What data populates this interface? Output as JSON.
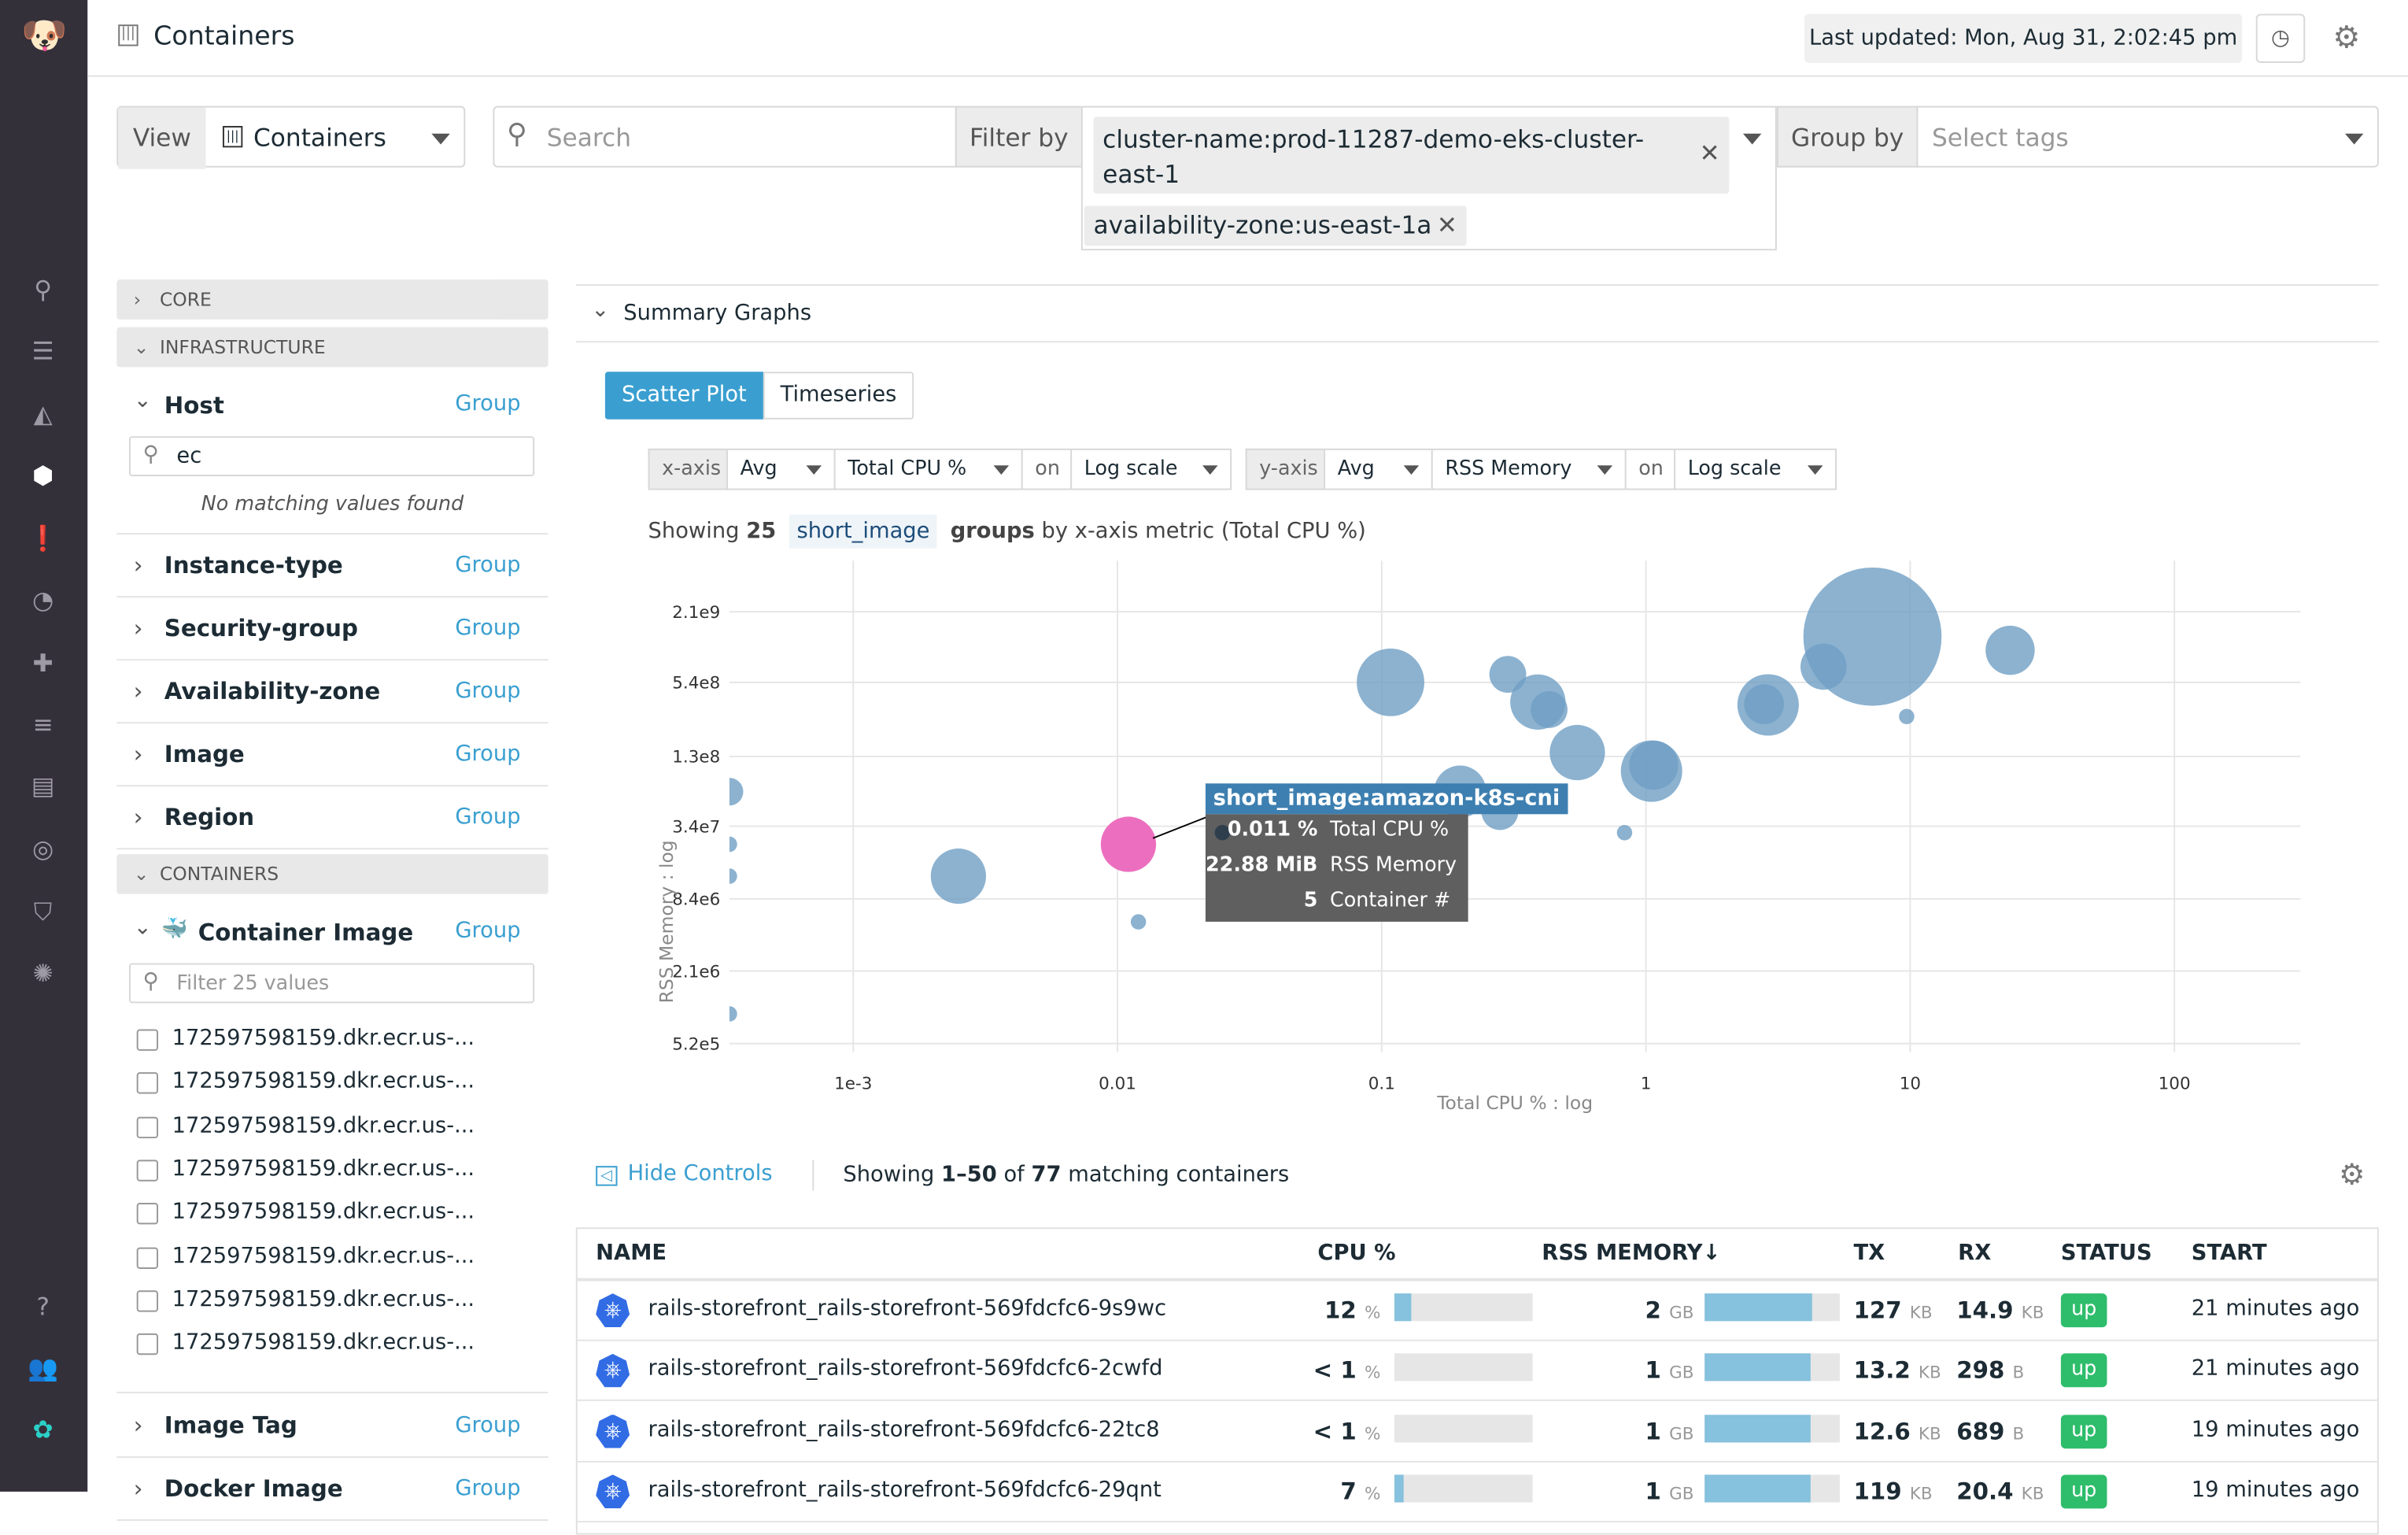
{
  "header": {
    "title": "Containers",
    "last_updated": "Last updated: Mon, Aug 31, 2:02:45 pm"
  },
  "toolbar": {
    "view_label": "View",
    "view_value": "Containers",
    "search_placeholder": "Search",
    "filter_label": "Filter by",
    "filters": [
      "cluster-name:prod-11287-demo-eks-cluster-east-1",
      "availability-zone:us-east-1a"
    ],
    "group_label": "Group by",
    "group_placeholder": "Select tags"
  },
  "sidebar": {
    "sections": {
      "core": "CORE",
      "infrastructure": "INFRASTRUCTURE",
      "containers": "CONTAINERS"
    },
    "group_link": "Group",
    "host": {
      "label": "Host",
      "search_value": "ec",
      "empty": "No matching values found"
    },
    "facets": [
      "Instance-type",
      "Security-group",
      "Availability-zone",
      "Image",
      "Region"
    ],
    "container_image": {
      "label": "Container Image",
      "placeholder": "Filter 25 values",
      "values": [
        "172597598159.dkr.ecr.us-...",
        "172597598159.dkr.ecr.us-...",
        "172597598159.dkr.ecr.us-...",
        "172597598159.dkr.ecr.us-...",
        "172597598159.dkr.ecr.us-...",
        "172597598159.dkr.ecr.us-...",
        "172597598159.dkr.ecr.us-...",
        "172597598159.dkr.ecr.us-..."
      ]
    },
    "more_facets": [
      "Image Tag",
      "Docker Image"
    ]
  },
  "summary": {
    "title": "Summary Graphs",
    "tabs": [
      "Scatter Plot",
      "Timeseries"
    ],
    "active_tab": "Scatter Plot",
    "x_controls": {
      "label": "x-axis",
      "agg": "Avg",
      "metric": "Total CPU %",
      "on": "on",
      "scale": "Log scale"
    },
    "y_controls": {
      "label": "y-axis",
      "agg": "Avg",
      "metric": "RSS Memory",
      "on": "on",
      "scale": "Log scale"
    },
    "showing_prefix": "Showing",
    "showing_count": "25",
    "showing_tag": "short_image",
    "showing_groups": "groups",
    "showing_suffix": "by x-axis metric (Total CPU %)"
  },
  "chart_data": {
    "type": "scatter",
    "xlabel": "Total CPU % : log",
    "ylabel": "RSS Memory : log",
    "xscale": "log",
    "yscale": "log",
    "xlim": [
      0.00034,
      300
    ],
    "ylim": [
      440000,
      5600000000
    ],
    "grid": true,
    "xticks": [
      "1e-3",
      "0.01",
      "0.1",
      "1",
      "10",
      "100"
    ],
    "xtick_values": [
      0.001,
      0.01,
      0.1,
      1,
      10,
      100
    ],
    "yticks": [
      "2.1e9",
      "5.4e8",
      "1.3e8",
      "3.4e7",
      "8.4e6",
      "2.1e6",
      "5.2e5"
    ],
    "ytick_values": [
      2100000000,
      540000000,
      130000000,
      34000000,
      8400000,
      2100000,
      520000
    ],
    "colors": {
      "point": "#6f9fc4",
      "highlight": "#ec6fbf",
      "tooltip_title": "#3d7fb0",
      "tooltip_bg": "#5f5f5f"
    },
    "points": [
      {
        "x": 7.2,
        "y": 1300000000,
        "size": 45
      },
      {
        "x": 23.9,
        "y": 1000000000,
        "size": 16
      },
      {
        "x": 4.7,
        "y": 730000000,
        "size": 15
      },
      {
        "x": 0.108,
        "y": 540000000,
        "size": 22
      },
      {
        "x": 0.3,
        "y": 630000000,
        "size": 12
      },
      {
        "x": 0.39,
        "y": 370000000,
        "size": 18
      },
      {
        "x": 0.43,
        "y": 320000000,
        "size": 12
      },
      {
        "x": 2.9,
        "y": 350000000,
        "size": 20
      },
      {
        "x": 2.8,
        "y": 355000000,
        "size": 13
      },
      {
        "x": 9.7,
        "y": 280000000,
        "size": 5
      },
      {
        "x": 0.55,
        "y": 140000000,
        "size": 18
      },
      {
        "x": 1.05,
        "y": 98000000,
        "size": 20
      },
      {
        "x": 1.07,
        "y": 110000000,
        "size": 16
      },
      {
        "x": 0.198,
        "y": 66000000,
        "size": 17
      },
      {
        "x": 0.28,
        "y": 45000000,
        "size": 12
      },
      {
        "x": 0.83,
        "y": 30000000,
        "size": 5
      },
      {
        "x": 0.011,
        "y": 24000000,
        "size": 18,
        "highlight": true
      },
      {
        "x": 0.0025,
        "y": 13000000,
        "size": 18
      },
      {
        "x": 0.012,
        "y": 5400000,
        "size": 5
      },
      {
        "x": 0.00034,
        "y": 66000000,
        "size": 9
      },
      {
        "x": 0.00034,
        "y": 24000000,
        "size": 5
      },
      {
        "x": 0.00034,
        "y": 13000000,
        "size": 5
      },
      {
        "x": 0.00034,
        "y": 920000,
        "size": 5
      }
    ],
    "tooltip": {
      "title": "short_image:amazon-k8s-cni",
      "rows": [
        {
          "value": "0.011 %",
          "label": "Total CPU %"
        },
        {
          "value": "22.88 MiB",
          "label": "RSS Memory"
        },
        {
          "value": "5",
          "label": "Container #"
        }
      ]
    }
  },
  "list": {
    "hide_controls": "Hide Controls",
    "showing_prefix": "Showing",
    "showing_range": "1–50",
    "showing_of": "of",
    "showing_total": "77",
    "showing_suffix": "matching containers",
    "columns": [
      "NAME",
      "CPU %",
      "RSS MEMORY↓",
      "TX",
      "RX",
      "STATUS",
      "START"
    ],
    "rows": [
      {
        "name": "rails-storefront_rails-storefront-569fdcfc6-9s9wc",
        "cpu": "12",
        "cpu_unit": "%",
        "cpu_frac": 0.12,
        "mem": "2",
        "mem_unit": "GB",
        "mem_frac": 0.8,
        "tx": "127",
        "tx_unit": "KB",
        "rx": "14.9",
        "rx_unit": "KB",
        "status": "up",
        "start": "21 minutes ago"
      },
      {
        "name": "rails-storefront_rails-storefront-569fdcfc6-2cwfd",
        "cpu": "< 1",
        "cpu_unit": "%",
        "cpu_frac": 0,
        "mem": "1",
        "mem_unit": "GB",
        "mem_frac": 0.78,
        "tx": "13.2",
        "tx_unit": "KB",
        "rx": "298",
        "rx_unit": "B",
        "status": "up",
        "start": "21 minutes ago"
      },
      {
        "name": "rails-storefront_rails-storefront-569fdcfc6-22tc8",
        "cpu": "< 1",
        "cpu_unit": "%",
        "cpu_frac": 0,
        "mem": "1",
        "mem_unit": "GB",
        "mem_frac": 0.78,
        "tx": "12.6",
        "tx_unit": "KB",
        "rx": "689",
        "rx_unit": "B",
        "status": "up",
        "start": "19 minutes ago"
      },
      {
        "name": "rails-storefront_rails-storefront-569fdcfc6-29qnt",
        "cpu": "7",
        "cpu_unit": "%",
        "cpu_frac": 0.07,
        "mem": "1",
        "mem_unit": "GB",
        "mem_frac": 0.78,
        "tx": "119",
        "tx_unit": "KB",
        "rx": "20.4",
        "rx_unit": "KB",
        "status": "up",
        "start": "19 minutes ago"
      }
    ]
  }
}
